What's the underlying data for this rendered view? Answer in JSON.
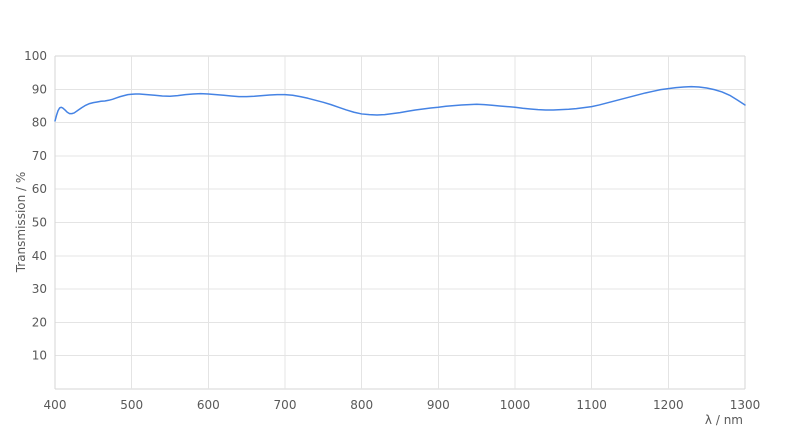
{
  "chart_data": {
    "type": "line",
    "title": "",
    "xlabel": "λ / nm",
    "ylabel": "Transmission / %",
    "xlim": [
      400,
      1300
    ],
    "ylim": [
      0,
      100
    ],
    "x_ticks": [
      400,
      500,
      600,
      700,
      800,
      900,
      1000,
      1100,
      1200,
      1300
    ],
    "y_ticks": [
      10,
      20,
      30,
      40,
      50,
      60,
      70,
      80,
      90,
      100
    ],
    "y_gridlines": [
      0,
      10,
      20,
      30,
      40,
      50,
      60,
      70,
      80,
      90,
      100
    ],
    "grid": "on",
    "legend": "none",
    "series": [
      {
        "name": "Transmission",
        "x": [
          400,
          402,
          404,
          406,
          408,
          410,
          413,
          416,
          419,
          422,
          425,
          430,
          435,
          440,
          445,
          450,
          455,
          460,
          465,
          470,
          475,
          480,
          485,
          490,
          495,
          500,
          505,
          510,
          520,
          530,
          540,
          550,
          560,
          570,
          580,
          590,
          600,
          610,
          620,
          630,
          640,
          650,
          660,
          670,
          680,
          690,
          700,
          710,
          720,
          730,
          740,
          750,
          760,
          770,
          780,
          790,
          800,
          810,
          820,
          830,
          840,
          850,
          860,
          870,
          880,
          890,
          900,
          910,
          920,
          930,
          940,
          950,
          960,
          970,
          980,
          990,
          1000,
          1010,
          1020,
          1030,
          1040,
          1050,
          1060,
          1070,
          1080,
          1090,
          1100,
          1110,
          1120,
          1130,
          1140,
          1150,
          1160,
          1170,
          1180,
          1190,
          1200,
          1210,
          1220,
          1230,
          1240,
          1250,
          1260,
          1270,
          1280,
          1290,
          1300
        ],
        "y": [
          80.5,
          82.2,
          83.6,
          84.4,
          84.6,
          84.4,
          83.8,
          83.1,
          82.7,
          82.7,
          82.9,
          83.7,
          84.5,
          85.2,
          85.7,
          86.0,
          86.2,
          86.4,
          86.5,
          86.7,
          87.0,
          87.4,
          87.8,
          88.1,
          88.4,
          88.5,
          88.6,
          88.6,
          88.4,
          88.2,
          88.0,
          87.9,
          88.1,
          88.4,
          88.6,
          88.7,
          88.6,
          88.4,
          88.2,
          88.0,
          87.8,
          87.8,
          87.9,
          88.1,
          88.3,
          88.4,
          88.4,
          88.2,
          87.8,
          87.3,
          86.7,
          86.1,
          85.4,
          84.6,
          83.8,
          83.1,
          82.6,
          82.4,
          82.3,
          82.4,
          82.7,
          83.0,
          83.4,
          83.8,
          84.1,
          84.4,
          84.6,
          84.9,
          85.1,
          85.3,
          85.4,
          85.5,
          85.4,
          85.2,
          85.0,
          84.8,
          84.6,
          84.3,
          84.1,
          83.9,
          83.8,
          83.8,
          83.9,
          84.0,
          84.2,
          84.5,
          84.8,
          85.3,
          85.9,
          86.5,
          87.1,
          87.7,
          88.3,
          88.9,
          89.4,
          89.9,
          90.2,
          90.5,
          90.7,
          90.8,
          90.7,
          90.4,
          89.9,
          89.2,
          88.2,
          86.8,
          85.3
        ]
      }
    ],
    "colors": {
      "line": "#4583e4",
      "grid": "#e4e4e4",
      "frame": "#d6d6d6",
      "tick_label": "#595959",
      "background": "#ffffff"
    }
  }
}
